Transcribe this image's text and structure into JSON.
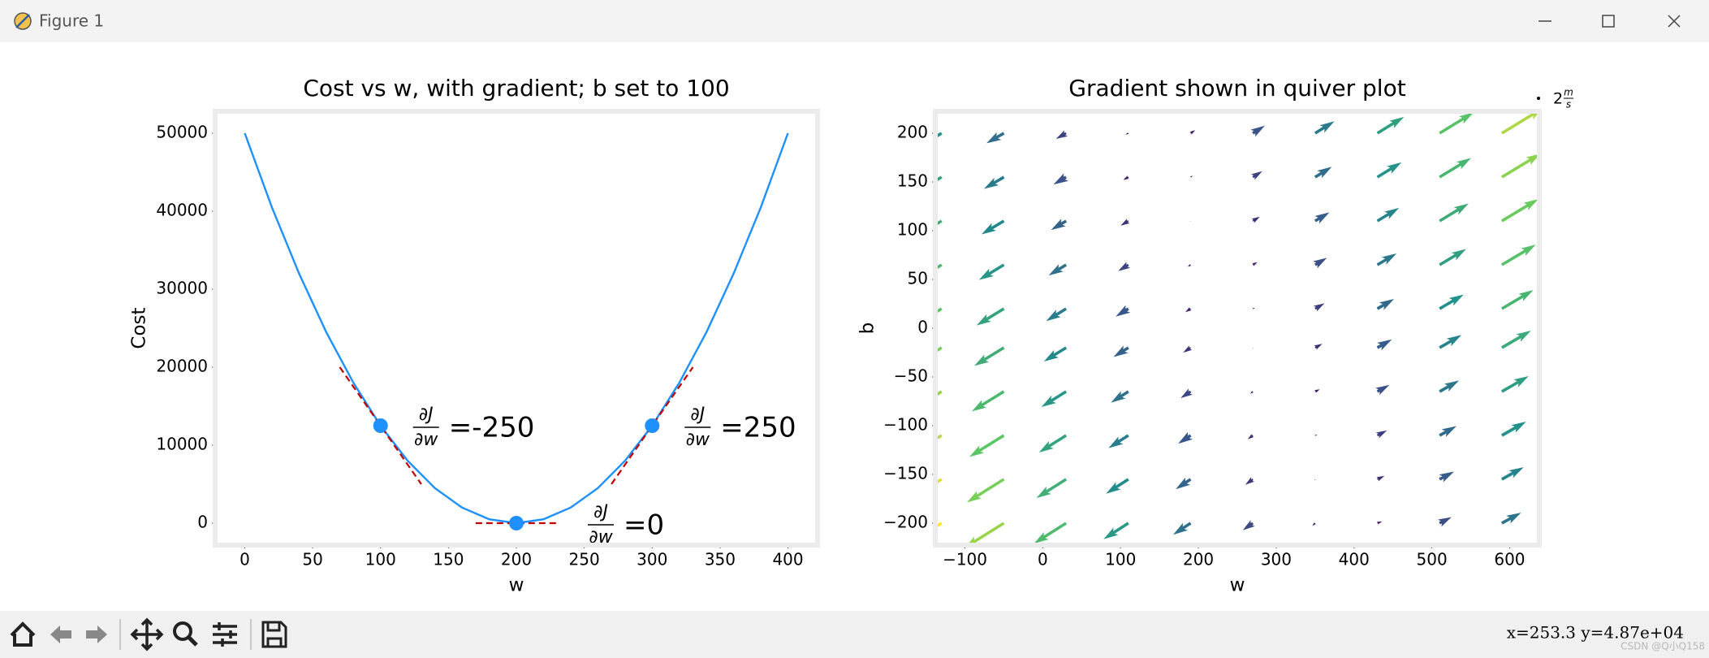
{
  "window": {
    "title": "Figure 1",
    "status": "x=253.3 y=4.87e+04",
    "watermark": "CSDN @Q小Q158"
  },
  "chart_data": [
    {
      "type": "line",
      "title": "Cost vs w, with gradient; b set to 100",
      "x_label": "w",
      "y_label": "Cost",
      "x": [
        0,
        20,
        40,
        60,
        80,
        100,
        120,
        140,
        160,
        180,
        200,
        220,
        240,
        260,
        280,
        300,
        320,
        340,
        360,
        380,
        400
      ],
      "values": [
        50000,
        40500,
        32000,
        24500,
        18000,
        12500,
        8000,
        4500,
        2000,
        500,
        0,
        500,
        2000,
        4500,
        8000,
        12500,
        18000,
        24500,
        32000,
        40500,
        50000
      ],
      "color": "#1e90ff",
      "points": {
        "x": [
          100,
          200,
          300
        ],
        "values": [
          12500,
          0,
          12500
        ],
        "color": "#1e90ff"
      },
      "gradients": {
        "slopes": [
          -250,
          0,
          250
        ],
        "labels": [
          "=-250",
          "=0",
          "=250"
        ],
        "numerator": "∂J",
        "denominator": "∂w",
        "color": "#c00000"
      },
      "xlim": [
        -20,
        420
      ],
      "ylim": [
        -2500,
        52500
      ],
      "xticks": [
        0,
        50,
        100,
        150,
        200,
        250,
        300,
        350,
        400
      ],
      "yticks": [
        0,
        10000,
        20000,
        30000,
        40000,
        50000
      ]
    },
    {
      "type": "quiver",
      "title": "Gradient shown in quiver plot",
      "x_label": "w",
      "y_label": "b",
      "x": [
        -130,
        -50,
        30,
        110,
        190,
        270,
        350,
        430,
        510,
        590
      ],
      "y": [
        -200,
        -155,
        -110,
        -65,
        -20,
        20,
        65,
        110,
        155,
        200
      ],
      "u": [
        [
          -1275,
          -1075,
          -875,
          -675,
          -475,
          -275,
          -75,
          125,
          325,
          525
        ],
        [
          -1207.5,
          -1007.5,
          -807.5,
          -607.5,
          -407.5,
          -207.5,
          -7.5,
          192.5,
          392.5,
          592.5
        ],
        [
          -1140,
          -940,
          -740,
          -540,
          -340,
          -140,
          60,
          260,
          460,
          660
        ],
        [
          -1072.5,
          -872.5,
          -672.5,
          -472.5,
          -272.5,
          -72.5,
          127.5,
          327.5,
          527.5,
          727.5
        ],
        [
          -1005,
          -805,
          -605,
          -405,
          -205,
          -5,
          195,
          395,
          595,
          795
        ],
        [
          -945,
          -745,
          -545,
          -345,
          -145,
          55,
          255,
          455,
          655,
          855
        ],
        [
          -877.5,
          -677.5,
          -477.5,
          -277.5,
          -77.5,
          122.5,
          322.5,
          522.5,
          722.5,
          922.5
        ],
        [
          -810,
          -610,
          -410,
          -210,
          -10,
          190,
          390,
          590,
          790,
          990
        ],
        [
          -742.5,
          -542.5,
          -342.5,
          -142.5,
          57.5,
          257.5,
          457.5,
          657.5,
          857.5,
          1057.5
        ],
        [
          -675,
          -475,
          -275,
          -75,
          125,
          325,
          525,
          725,
          925,
          1125
        ]
      ],
      "v": [
        [
          -795,
          -675,
          -555,
          -435,
          -315,
          -195,
          -75,
          45,
          165,
          285
        ],
        [
          -750,
          -630,
          -510,
          -390,
          -270,
          -150,
          -30,
          90,
          210,
          330
        ],
        [
          -705,
          -585,
          -465,
          -345,
          -225,
          -105,
          15,
          135,
          255,
          375
        ],
        [
          -660,
          -540,
          -420,
          -300,
          -180,
          -60,
          60,
          180,
          300,
          420
        ],
        [
          -615,
          -495,
          -375,
          -255,
          -135,
          -15,
          105,
          225,
          345,
          465
        ],
        [
          -575,
          -455,
          -335,
          -215,
          -95,
          25,
          145,
          265,
          385,
          505
        ],
        [
          -530,
          -410,
          -290,
          -170,
          -50,
          70,
          190,
          310,
          430,
          550
        ],
        [
          -485,
          -365,
          -245,
          -125,
          -5,
          115,
          235,
          355,
          475,
          595
        ],
        [
          -440,
          -320,
          -200,
          -80,
          40,
          160,
          280,
          400,
          520,
          640
        ],
        [
          -395,
          -275,
          -155,
          -35,
          85,
          205,
          325,
          445,
          565,
          685
        ]
      ],
      "colormap": "viridis",
      "key": {
        "value": 2,
        "numerator": "m",
        "denominator": "s"
      },
      "xlim": [
        -135,
        635
      ],
      "ylim": [
        -220,
        220
      ],
      "xticks": [
        {
          "value": -100,
          "label": "−100"
        },
        0,
        100,
        200,
        300,
        400,
        500,
        600
      ],
      "yticks": [
        {
          "value": -200,
          "label": "−200"
        },
        {
          "value": -150,
          "label": "−150"
        },
        {
          "value": -100,
          "label": "−100"
        },
        {
          "value": -50,
          "label": "−50"
        },
        0,
        50,
        100,
        150,
        200
      ]
    }
  ]
}
